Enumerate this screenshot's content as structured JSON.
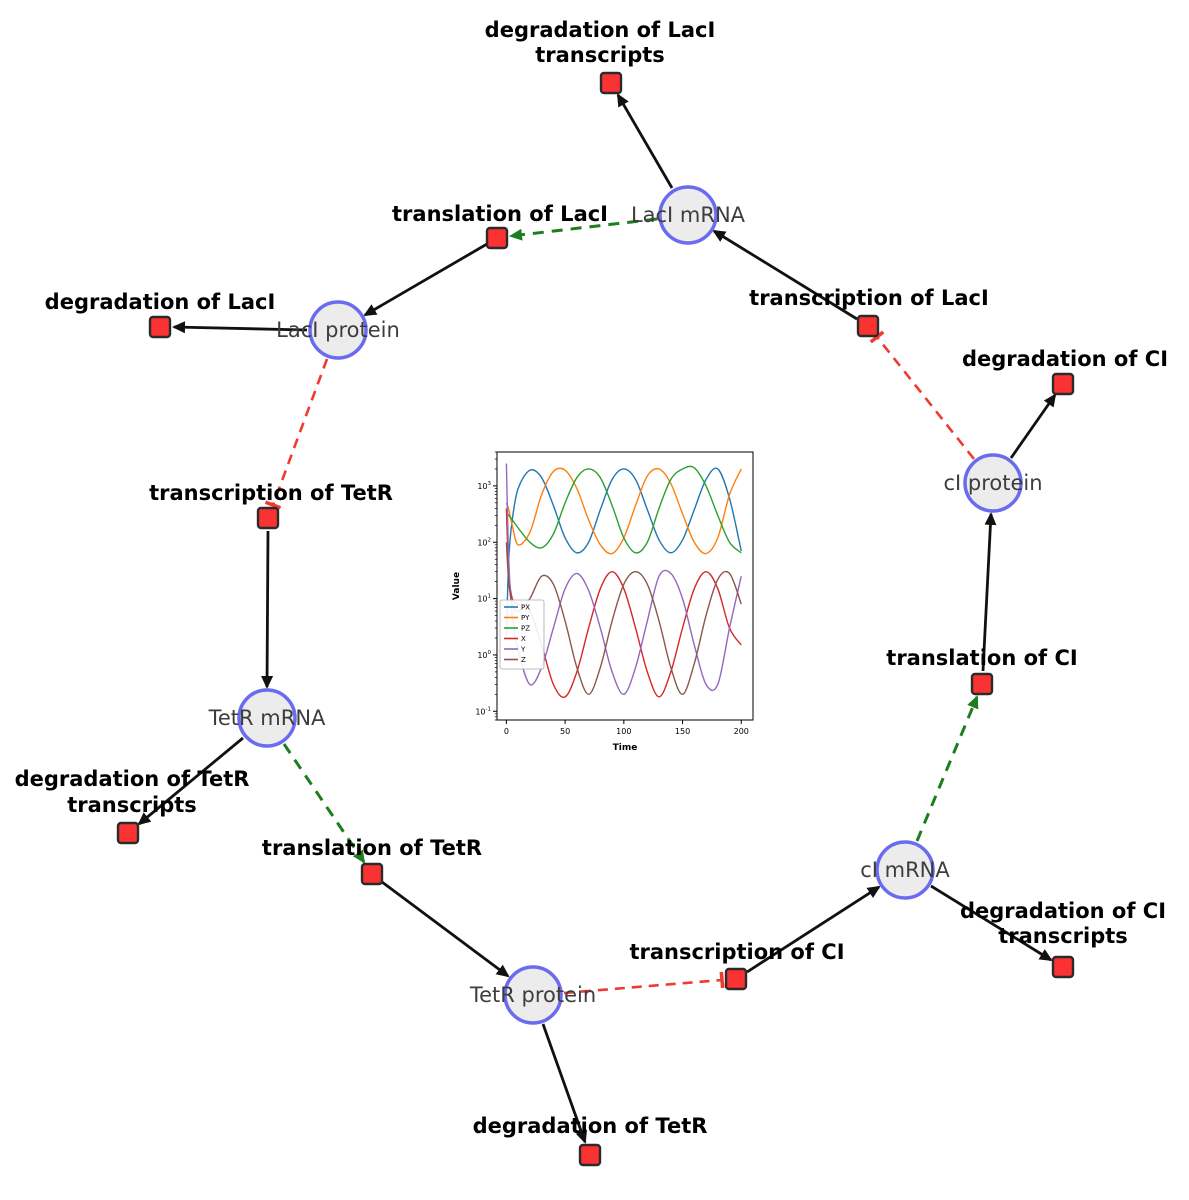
{
  "diagram": {
    "colors": {
      "species_fill": "#ececec",
      "species_border": "#6b6bf0",
      "reaction_fill": "#fa3232",
      "reaction_border": "#2b2b2b",
      "production_edge": "#111111",
      "modifier_edge": "#1e7d1e",
      "inhibition_edge": "#ee3b30"
    },
    "species": [
      {
        "id": "laci-mrna",
        "label": "LacI mRNA"
      },
      {
        "id": "laci-protein",
        "label": "LacI protein"
      },
      {
        "id": "tetr-mrna",
        "label": "TetR mRNA"
      },
      {
        "id": "tetr-protein",
        "label": "TetR protein"
      },
      {
        "id": "ci-mrna",
        "label": "cI mRNA"
      },
      {
        "id": "ci-protein",
        "label": "cI protein"
      }
    ],
    "reactions": [
      {
        "id": "degradation-of-laci-transcripts",
        "label": "degradation of LacI transcripts",
        "label_lines": [
          "degradation of LacI",
          "transcripts"
        ]
      },
      {
        "id": "translation-of-laci",
        "label": "translation of LacI",
        "label_lines": [
          "translation of LacI"
        ]
      },
      {
        "id": "transcription-of-laci",
        "label": "transcription of LacI",
        "label_lines": [
          "transcription of LacI"
        ]
      },
      {
        "id": "degradation-of-laci",
        "label": "degradation of LacI",
        "label_lines": [
          "degradation of LacI"
        ]
      },
      {
        "id": "degradation-of-ci",
        "label": "degradation of CI",
        "label_lines": [
          "degradation of CI"
        ]
      },
      {
        "id": "transcription-of-tetr",
        "label": "transcription of TetR",
        "label_lines": [
          "transcription of TetR"
        ]
      },
      {
        "id": "translation-of-ci",
        "label": "translation of CI",
        "label_lines": [
          "translation of CI"
        ]
      },
      {
        "id": "degradation-of-tetr-transcripts",
        "label": "degradation of TetR transcripts",
        "label_lines": [
          "degradation of TetR",
          "transcripts"
        ]
      },
      {
        "id": "translation-of-tetr",
        "label": "translation of TetR",
        "label_lines": [
          "translation of TetR"
        ]
      },
      {
        "id": "transcription-of-ci",
        "label": "transcription of CI",
        "label_lines": [
          "transcription of CI"
        ]
      },
      {
        "id": "degradation-of-ci-transcripts",
        "label": "degradation of CI transcripts",
        "label_lines": [
          "degradation of CI",
          "transcripts"
        ]
      },
      {
        "id": "degradation-of-tetr",
        "label": "degradation of TetR",
        "label_lines": [
          "degradation of TetR"
        ]
      }
    ]
  },
  "chart_data": {
    "type": "line",
    "title": "",
    "xlabel": "Time",
    "ylabel": "Value",
    "yscale": "log",
    "xlim": [
      -8,
      210
    ],
    "ylim": [
      0.07,
      4000
    ],
    "xticks": [
      0,
      50,
      100,
      150,
      200
    ],
    "yticks": [
      0.1,
      1,
      10,
      100,
      1000
    ],
    "legend_position": "center left",
    "x": [
      0,
      2,
      5,
      10,
      20,
      30,
      40,
      50,
      60,
      70,
      80,
      90,
      100,
      110,
      120,
      130,
      140,
      150,
      160,
      170,
      180,
      190,
      200
    ],
    "series": [
      {
        "name": "PX",
        "color": "#1f77b4",
        "values": [
          2,
          50,
          250,
          900,
          1900,
          1400,
          450,
          120,
          65,
          100,
          380,
          1300,
          2000,
          1300,
          380,
          110,
          65,
          110,
          380,
          1300,
          2000,
          600,
          70
        ]
      },
      {
        "name": "PY",
        "color": "#ff7f0e",
        "values": [
          500,
          380,
          200,
          90,
          150,
          700,
          1800,
          1900,
          900,
          250,
          90,
          63,
          120,
          450,
          1500,
          2000,
          1100,
          320,
          100,
          63,
          120,
          700,
          2000
        ]
      },
      {
        "name": "PZ",
        "color": "#2ca02c",
        "values": [
          350,
          300,
          250,
          180,
          100,
          80,
          140,
          500,
          1400,
          2000,
          1400,
          450,
          120,
          65,
          100,
          400,
          1300,
          2000,
          2100,
          1000,
          300,
          100,
          65
        ]
      },
      {
        "name": "X",
        "color": "#d62728",
        "values": [
          400,
          30,
          10,
          8,
          6,
          1.5,
          0.3,
          0.18,
          0.5,
          3,
          15,
          30,
          15,
          3,
          0.5,
          0.18,
          0.5,
          3,
          15,
          30,
          15,
          3,
          1.5
        ]
      },
      {
        "name": "Y",
        "color": "#9467bd",
        "values": [
          2500,
          50,
          5,
          1.2,
          0.3,
          0.6,
          3,
          15,
          28,
          14,
          3,
          0.5,
          0.2,
          0.6,
          4,
          25,
          28,
          10,
          1.5,
          0.3,
          0.3,
          3,
          25
        ]
      },
      {
        "name": "Z",
        "color": "#8c564b",
        "values": [
          100,
          20,
          8,
          6,
          10,
          25,
          18,
          4,
          0.6,
          0.2,
          0.6,
          4,
          18,
          30,
          18,
          4,
          0.6,
          0.2,
          0.7,
          5,
          22,
          28,
          8
        ]
      }
    ]
  }
}
